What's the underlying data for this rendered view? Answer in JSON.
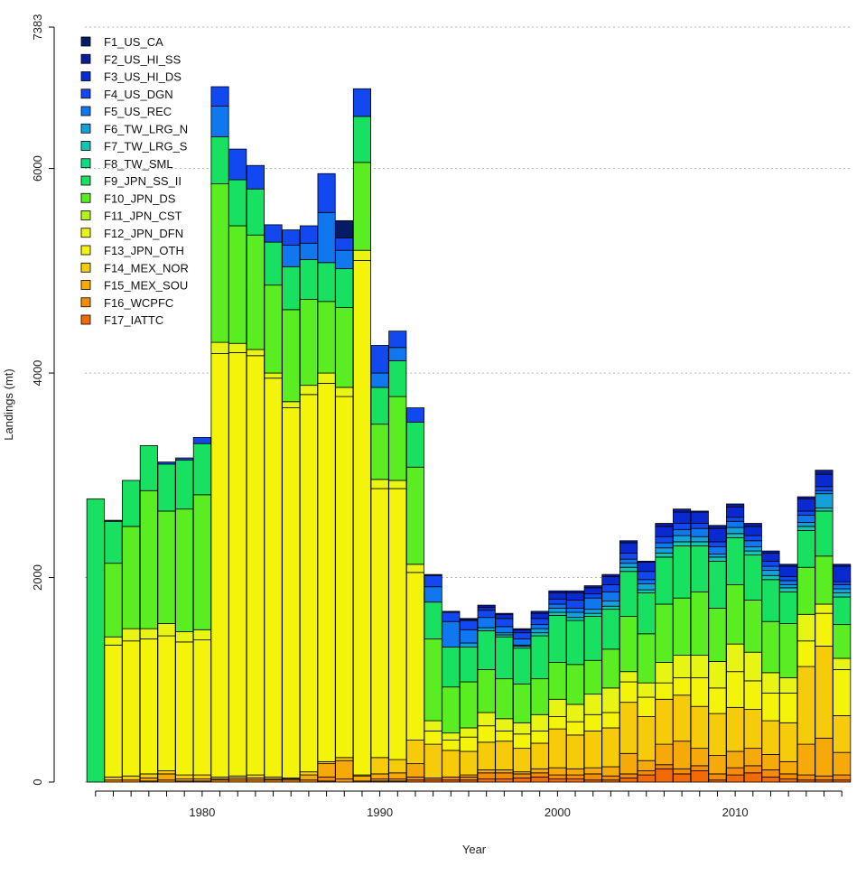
{
  "chart_data": {
    "type": "bar",
    "stacked": true,
    "xlabel": "Year",
    "ylabel": "Landings (mt)",
    "ylim": [
      0,
      7383
    ],
    "xlim": [
      1973.4,
      2016.6
    ],
    "y_ticks": [
      0,
      2000,
      4000,
      6000,
      7383
    ],
    "x_ticks": [
      1980,
      1990,
      2000,
      2010
    ],
    "grid_lines": [
      2000,
      4000,
      6000,
      7383
    ],
    "legend_position": "top-left",
    "years": [
      1974,
      1975,
      1976,
      1977,
      1978,
      1979,
      1980,
      1981,
      1982,
      1983,
      1984,
      1985,
      1986,
      1987,
      1988,
      1989,
      1990,
      1991,
      1992,
      1993,
      1994,
      1995,
      1996,
      1997,
      1998,
      1999,
      2000,
      2001,
      2002,
      2003,
      2004,
      2005,
      2006,
      2007,
      2008,
      2009,
      2010,
      2011,
      2012,
      2013,
      2014,
      2015,
      2016
    ],
    "series": [
      {
        "name": "F1_US_CA",
        "color": "#061a66",
        "values": [
          0,
          10,
          0,
          0,
          0,
          0,
          0,
          0,
          0,
          0,
          0,
          0,
          0,
          0,
          170,
          0,
          0,
          0,
          0,
          0,
          0,
          0,
          0,
          0,
          0,
          0,
          0,
          0,
          0,
          0,
          0,
          0,
          0,
          0,
          0,
          0,
          0,
          0,
          0,
          0,
          0,
          0,
          0
        ]
      },
      {
        "name": "F2_US_HI_SS",
        "color": "#081c9c",
        "values": [
          0,
          0,
          0,
          0,
          0,
          0,
          0,
          0,
          0,
          0,
          0,
          0,
          0,
          0,
          0,
          0,
          0,
          0,
          0,
          10,
          10,
          10,
          20,
          10,
          10,
          20,
          20,
          20,
          20,
          20,
          20,
          10,
          30,
          30,
          10,
          30,
          30,
          30,
          20,
          20,
          20,
          40,
          20
        ]
      },
      {
        "name": "F3_US_HI_DS",
        "color": "#0a2ad1",
        "values": [
          0,
          0,
          0,
          0,
          0,
          0,
          0,
          0,
          0,
          0,
          0,
          0,
          0,
          0,
          0,
          0,
          0,
          0,
          0,
          0,
          0,
          10,
          30,
          40,
          30,
          50,
          60,
          70,
          60,
          80,
          100,
          90,
          100,
          110,
          110,
          130,
          100,
          90,
          80,
          100,
          120,
          120,
          150
        ]
      },
      {
        "name": "F4_US_DGN",
        "color": "#1148f0",
        "values": [
          0,
          0,
          0,
          0,
          20,
          20,
          60,
          190,
          300,
          230,
          170,
          150,
          170,
          380,
          120,
          270,
          270,
          160,
          140,
          110,
          90,
          90,
          70,
          80,
          60,
          60,
          50,
          80,
          40,
          70,
          60,
          80,
          60,
          60,
          50,
          50,
          40,
          50,
          50,
          40,
          40,
          40,
          30
        ]
      },
      {
        "name": "F5_US_REC",
        "color": "#1177ee",
        "values": [
          0,
          0,
          0,
          0,
          0,
          0,
          0,
          300,
          0,
          0,
          0,
          210,
          160,
          490,
          180,
          0,
          140,
          130,
          0,
          150,
          250,
          130,
          100,
          60,
          60,
          40,
          40,
          40,
          110,
          90,
          40,
          40,
          50,
          60,
          80,
          70,
          60,
          60,
          40,
          40,
          70,
          30,
          40
        ]
      },
      {
        "name": "F6_TW_LRG_N",
        "color": "#14a0d8",
        "values": [
          0,
          0,
          0,
          0,
          0,
          0,
          0,
          0,
          0,
          0,
          0,
          0,
          0,
          0,
          0,
          0,
          0,
          0,
          0,
          0,
          0,
          40,
          30,
          20,
          10,
          40,
          40,
          50,
          40,
          50,
          40,
          60,
          50,
          60,
          50,
          30,
          60,
          40,
          50,
          30,
          40,
          140,
          40
        ]
      },
      {
        "name": "F7_TW_LRG_S",
        "color": "#14c5b2",
        "values": [
          0,
          0,
          0,
          0,
          0,
          0,
          0,
          0,
          0,
          0,
          0,
          0,
          0,
          0,
          0,
          0,
          0,
          0,
          0,
          0,
          0,
          0,
          0,
          20,
          20,
          30,
          30,
          30,
          30,
          30,
          40,
          30,
          40,
          40,
          40,
          40,
          40,
          40,
          40,
          40,
          40,
          30,
          40
        ]
      },
      {
        "name": "F8_TW_SML",
        "color": "#0fdc80",
        "values": [
          0,
          0,
          0,
          0,
          0,
          0,
          0,
          0,
          0,
          0,
          0,
          0,
          0,
          0,
          0,
          0,
          0,
          0,
          0,
          0,
          0,
          0,
          0,
          0,
          0,
          0,
          0,
          0,
          0,
          0,
          0,
          0,
          0,
          0,
          0,
          0,
          0,
          0,
          0,
          0,
          0,
          0,
          0
        ]
      },
      {
        "name": "F9_JPN_SS_II",
        "color": "#18e060",
        "values": [
          2770,
          410,
          450,
          440,
          460,
          480,
          500,
          460,
          450,
          450,
          420,
          420,
          390,
          380,
          380,
          450,
          360,
          350,
          440,
          360,
          390,
          340,
          380,
          410,
          350,
          420,
          460,
          430,
          430,
          390,
          440,
          400,
          460,
          510,
          450,
          460,
          460,
          440,
          410,
          310,
          360,
          440,
          270
        ]
      },
      {
        "name": "F10_JPN_DS",
        "color": "#5aee22",
        "values": [
          0,
          720,
          1000,
          1350,
          1100,
          1200,
          1320,
          1550,
          1150,
          1120,
          860,
          900,
          840,
          700,
          780,
          860,
          540,
          820,
          950,
          800,
          450,
          450,
          420,
          390,
          380,
          350,
          360,
          390,
          330,
          380,
          540,
          480,
          570,
          560,
          620,
          520,
          580,
          510,
          500,
          530,
          460,
          470,
          330
        ]
      },
      {
        "name": "F11_JPN_CST",
        "color": "#b2f21e",
        "values": [
          0,
          0,
          0,
          0,
          0,
          0,
          0,
          0,
          0,
          0,
          0,
          0,
          0,
          0,
          0,
          0,
          0,
          0,
          0,
          0,
          0,
          0,
          0,
          0,
          0,
          0,
          0,
          0,
          0,
          0,
          0,
          0,
          0,
          0,
          0,
          0,
          0,
          0,
          0,
          0,
          0,
          0,
          0
        ]
      },
      {
        "name": "F12_JPN_DFN",
        "color": "#e8f414",
        "values": [
          0,
          80,
          120,
          100,
          120,
          100,
          100,
          110,
          90,
          60,
          50,
          60,
          90,
          100,
          90,
          100,
          90,
          80,
          80,
          100,
          70,
          90,
          130,
          120,
          110,
          160,
          170,
          170,
          200,
          240,
          100,
          140,
          200,
          220,
          220,
          260,
          270,
          280,
          200,
          150,
          260,
          90,
          110
        ]
      },
      {
        "name": "F13_JPN_OTH",
        "color": "#f4f40a",
        "values": [
          0,
          1290,
          1320,
          1320,
          1320,
          1300,
          1320,
          4140,
          4140,
          4100,
          3900,
          3620,
          3690,
          3700,
          3530,
          5030,
          2630,
          2650,
          1640,
          130,
          100,
          140,
          160,
          100,
          140,
          120,
          120,
          130,
          160,
          150,
          200,
          190,
          160,
          170,
          280,
          250,
          350,
          280,
          270,
          290,
          250,
          320,
          450
        ]
      },
      {
        "name": "F14_MEX_NOR",
        "color": "#f6cc0a",
        "values": [
          0,
          30,
          40,
          40,
          30,
          40,
          40,
          20,
          20,
          30,
          20,
          10,
          30,
          20,
          30,
          10,
          160,
          130,
          230,
          330,
          260,
          230,
          270,
          280,
          230,
          250,
          380,
          330,
          360,
          380,
          500,
          430,
          440,
          450,
          410,
          410,
          430,
          380,
          330,
          380,
          760,
          900,
          360
        ]
      },
      {
        "name": "F15_MEX_SOU",
        "color": "#f6aa0a",
        "values": [
          0,
          0,
          0,
          30,
          60,
          20,
          20,
          10,
          20,
          20,
          10,
          10,
          50,
          130,
          180,
          50,
          50,
          60,
          130,
          0,
          0,
          20,
          30,
          30,
          20,
          40,
          70,
          60,
          60,
          90,
          200,
          100,
          200,
          270,
          170,
          180,
          160,
          170,
          150,
          120,
          300,
          370,
          220
        ]
      },
      {
        "name": "F16_WCPFC",
        "color": "#f58c08",
        "values": [
          0,
          20,
          20,
          10,
          20,
          10,
          10,
          20,
          20,
          20,
          20,
          20,
          20,
          40,
          30,
          10,
          20,
          20,
          30,
          20,
          30,
          30,
          60,
          60,
          40,
          40,
          40,
          40,
          60,
          40,
          40,
          40,
          40,
          50,
          50,
          60,
          70,
          70,
          70,
          50,
          50,
          40,
          50
        ]
      },
      {
        "name": "F17_IATTC",
        "color": "#f26a05",
        "values": [
          0,
          0,
          0,
          0,
          0,
          0,
          0,
          0,
          0,
          0,
          0,
          0,
          0,
          10,
          0,
          0,
          10,
          10,
          20,
          20,
          20,
          20,
          30,
          30,
          40,
          50,
          30,
          30,
          20,
          20,
          40,
          70,
          130,
          80,
          110,
          20,
          70,
          90,
          50,
          30,
          20,
          20,
          20
        ]
      }
    ]
  }
}
